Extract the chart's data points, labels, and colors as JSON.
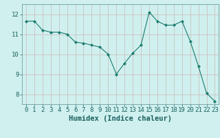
{
  "x": [
    0,
    1,
    2,
    3,
    4,
    5,
    6,
    7,
    8,
    9,
    10,
    11,
    12,
    13,
    14,
    15,
    16,
    17,
    18,
    19,
    20,
    21,
    22,
    23
  ],
  "y": [
    11.65,
    11.65,
    11.2,
    11.1,
    11.1,
    11.0,
    10.6,
    10.55,
    10.45,
    10.35,
    10.0,
    9.0,
    9.55,
    10.05,
    10.45,
    12.1,
    11.65,
    11.45,
    11.45,
    11.65,
    10.65,
    9.4,
    8.05,
    7.65
  ],
  "bg_color": "#cff0ee",
  "line_color": "#1a7a6e",
  "marker_color": "#1a7a6e",
  "grid_color_v": "#c8b8b8",
  "grid_color_h": "#c8b8b8",
  "text_color": "#1a6060",
  "xlabel": "Humidex (Indice chaleur)",
  "xlabel_fontsize": 7.5,
  "tick_fontsize": 6.5,
  "ylim": [
    7.5,
    12.5
  ],
  "yticks": [
    8,
    9,
    10,
    11,
    12
  ],
  "xticks": [
    0,
    1,
    2,
    3,
    4,
    5,
    6,
    7,
    8,
    9,
    10,
    11,
    12,
    13,
    14,
    15,
    16,
    17,
    18,
    19,
    20,
    21,
    22,
    23
  ]
}
